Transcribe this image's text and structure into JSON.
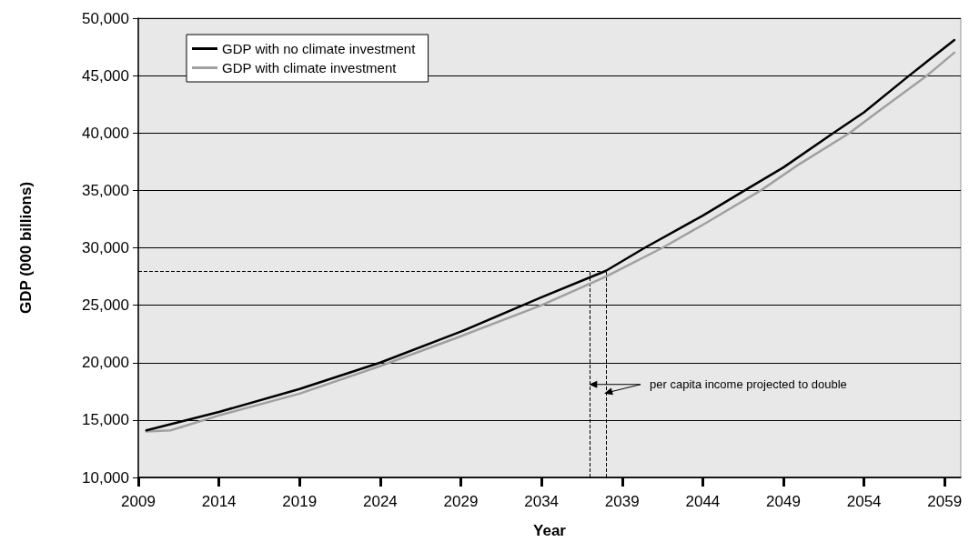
{
  "chart_data": {
    "type": "line",
    "xlabel": "Year",
    "ylabel": "GDP (000 billions)",
    "xlim": [
      2009,
      2060
    ],
    "xticks": [
      2009,
      2014,
      2019,
      2024,
      2029,
      2034,
      2039,
      2044,
      2049,
      2054,
      2059
    ],
    "ylim": [
      10000,
      50000
    ],
    "yticks": [
      {
        "value": 10000,
        "label": "10,000"
      },
      {
        "value": 15000,
        "label": "15,000"
      },
      {
        "value": 20000,
        "label": "20,000"
      },
      {
        "value": 25000,
        "label": "25,000"
      },
      {
        "value": 30000,
        "label": "30,000"
      },
      {
        "value": 35000,
        "label": "35,000"
      },
      {
        "value": 40000,
        "label": "40,000"
      },
      {
        "value": 45000,
        "label": "45,000"
      },
      {
        "value": 50000,
        "label": "50,000"
      }
    ],
    "grid": "y",
    "legend": "top left",
    "marker": "none",
    "line_style": "solid",
    "series": [
      {
        "name": "GDP with no climate investment",
        "color": "#000000",
        "x": [
          2009.5,
          2014,
          2019,
          2024,
          2029,
          2034,
          2038,
          2040.4,
          2044,
          2046.6,
          2049,
          2052.1,
          2054,
          2056.8,
          2059.6
        ],
        "values": [
          14100,
          15700,
          17700,
          20000,
          22700,
          25700,
          28000,
          30000,
          32800,
          35000,
          37000,
          40000,
          41800,
          45000,
          48100
        ]
      },
      {
        "name": "GDP with climate investment",
        "color": "#a0a0a0",
        "x": [
          2009.5,
          2011,
          2014,
          2019,
          2024,
          2029,
          2034,
          2038,
          2041.5,
          2044,
          2047.6,
          2050,
          2053.1,
          2055,
          2057.9,
          2059.6
        ],
        "values": [
          14000,
          14100,
          15400,
          17300,
          19700,
          22300,
          25000,
          27500,
          30000,
          32000,
          35000,
          37300,
          40000,
          42000,
          45000,
          47000
        ]
      }
    ],
    "ref_lines": [
      {
        "axis": "y",
        "value": 28000,
        "line_style": "dashed",
        "color": "#000000"
      },
      {
        "axis": "x",
        "value": 2037,
        "line_style": "dashed",
        "color": "#000000"
      },
      {
        "axis": "x",
        "value": 2038,
        "line_style": "dashed",
        "color": "#000000"
      }
    ],
    "annotations": [
      "per capita income projected to double"
    ]
  }
}
